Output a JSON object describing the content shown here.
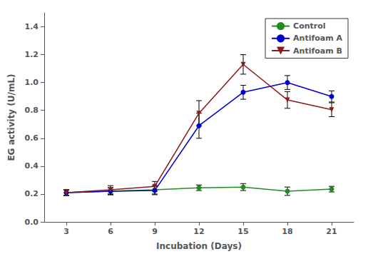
{
  "chart_data": {
    "type": "line",
    "xlabel": "Incubation (Days)",
    "ylabel": "EG activity (U/mL)",
    "x": [
      3,
      6,
      9,
      12,
      15,
      18,
      21
    ],
    "series": [
      {
        "name": "Control",
        "color": "#228B22",
        "marker": "circle",
        "values": [
          0.21,
          0.22,
          0.23,
          0.245,
          0.25,
          0.22,
          0.235
        ],
        "yerr": [
          0.02,
          0.025,
          0.03,
          0.02,
          0.025,
          0.03,
          0.02
        ]
      },
      {
        "name": "Antifoam A",
        "color": "#0000CD",
        "marker": "circle",
        "values": [
          0.21,
          0.22,
          0.225,
          0.69,
          0.93,
          1.0,
          0.9
        ],
        "yerr": [
          0.02,
          0.025,
          0.03,
          0.09,
          0.05,
          0.05,
          0.04
        ]
      },
      {
        "name": "Antifoam B",
        "color": "#8B1A1A",
        "marker": "triangle_down",
        "values": [
          0.21,
          0.23,
          0.255,
          0.78,
          1.13,
          0.875,
          0.805
        ],
        "yerr": [
          0.02,
          0.03,
          0.035,
          0.09,
          0.07,
          0.06,
          0.05
        ]
      }
    ],
    "xlim": [
      1.5,
      22.5
    ],
    "xticks": [
      3,
      6,
      9,
      12,
      15,
      18,
      21
    ],
    "ylim": [
      0.0,
      1.5
    ],
    "yticks": [
      {
        "value": 0,
        "label": "0.0"
      },
      0.2,
      0.4,
      0.6,
      0.8,
      {
        "value": 1,
        "label": "1.0"
      },
      1.2,
      1.4
    ],
    "grid": false,
    "legend": "upper right"
  }
}
